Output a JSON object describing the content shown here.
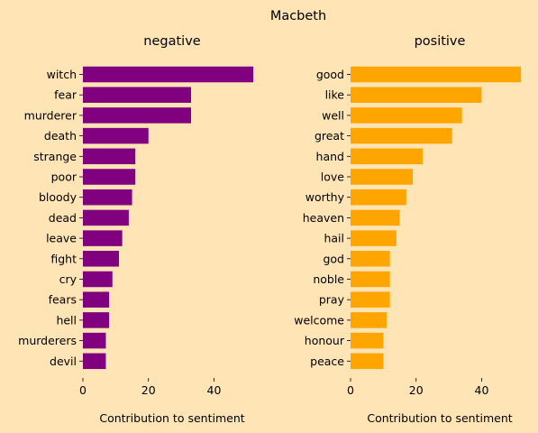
{
  "title": "Macbeth",
  "colors": {
    "background": "#ffe4b5",
    "negative": "#800080",
    "positive": "#ffa500"
  },
  "chart_data": [
    {
      "type": "bar",
      "orientation": "horizontal",
      "title": "negative",
      "xlabel": "Contribution to sentiment",
      "ylabel": "",
      "xlim": [
        0,
        55
      ],
      "xticks": [
        "0",
        "20",
        "40"
      ],
      "grid": false,
      "categories": [
        "witch",
        "fear",
        "murderer",
        "death",
        "strange",
        "poor",
        "bloody",
        "dead",
        "leave",
        "fight",
        "cry",
        "fears",
        "hell",
        "murderers",
        "devil"
      ],
      "values": [
        52,
        33,
        33,
        20,
        16,
        16,
        15,
        14,
        12,
        11,
        9,
        8,
        8,
        7,
        7
      ],
      "color": "#800080"
    },
    {
      "type": "bar",
      "orientation": "horizontal",
      "title": "positive",
      "xlabel": "Contribution to sentiment",
      "ylabel": "",
      "xlim": [
        0,
        55
      ],
      "xticks": [
        "0",
        "20",
        "40"
      ],
      "grid": false,
      "categories": [
        "good",
        "like",
        "well",
        "great",
        "hand",
        "love",
        "worthy",
        "heaven",
        "hail",
        "god",
        "noble",
        "pray",
        "welcome",
        "honour",
        "peace"
      ],
      "values": [
        52,
        40,
        34,
        31,
        22,
        19,
        17,
        15,
        14,
        12,
        12,
        12,
        11,
        10,
        10
      ],
      "color": "#ffa500"
    }
  ]
}
